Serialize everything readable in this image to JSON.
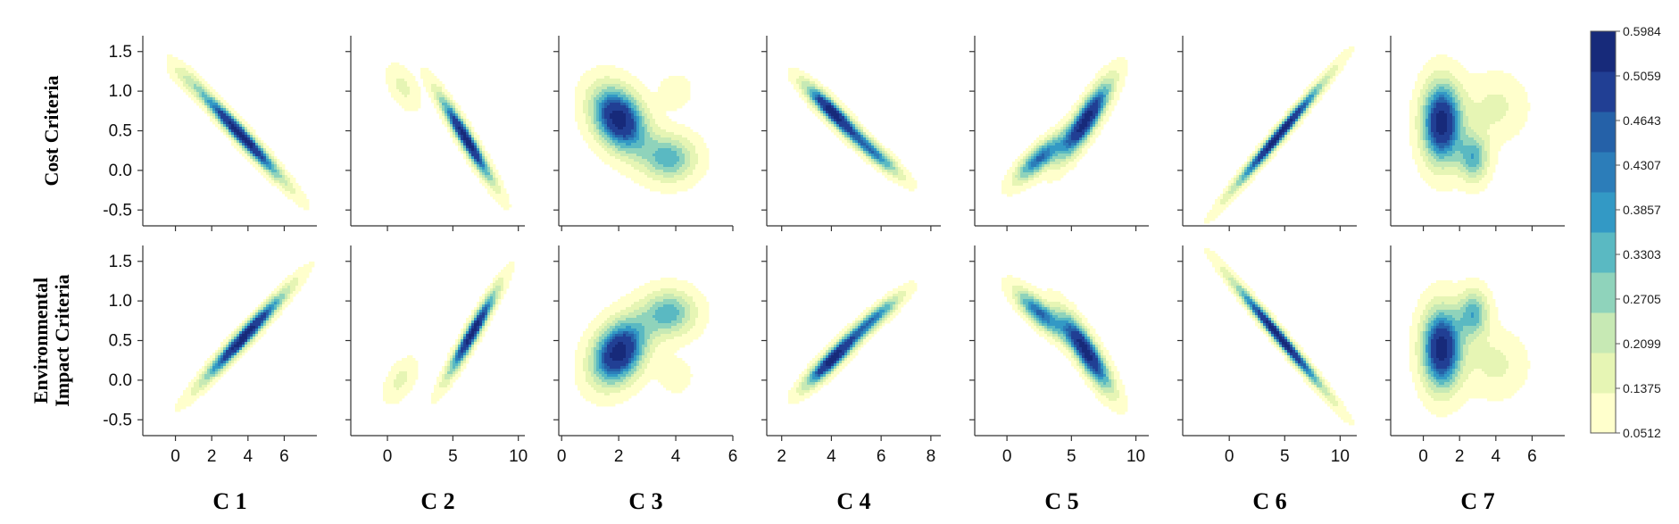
{
  "chart_data": {
    "type": "heatmap",
    "subtype": "kde-contour-grid",
    "rows": [
      {
        "key": "cost",
        "label_lines": [
          "Cost Criteria"
        ]
      },
      {
        "key": "env",
        "label_lines": [
          "Environmental",
          "Impact Criteria"
        ]
      }
    ],
    "y_ticks": [
      "1.5",
      "1.0",
      "0.5",
      "0.0",
      "-0.5"
    ],
    "y_tick_values": [
      1.5,
      1.0,
      0.5,
      0.0,
      -0.5
    ],
    "ylim": [
      -0.7,
      1.7
    ],
    "colorbar": {
      "levels": [
        "0.5984",
        "0.5059",
        "0.4643",
        "0.4307",
        "0.3857",
        "0.3303",
        "0.2705",
        "0.2099",
        "0.1375",
        "0.0512"
      ],
      "colors": [
        "#ffffcc",
        "#e6f5b4",
        "#c7e9b4",
        "#8fd3bb",
        "#5ab9c2",
        "#3399c5",
        "#2c7db9",
        "#2561a8",
        "#213f94",
        "#172a7a"
      ]
    },
    "panels": [
      {
        "title": "C 1",
        "xticks": [
          "0",
          "2",
          "4",
          "6"
        ],
        "xtick_values": [
          0,
          2,
          4,
          6
        ],
        "xlim": [
          -1.8,
          7.8
        ],
        "cost": [
          {
            "x": 3.6,
            "y": 0.45,
            "sx": 1.7,
            "sy": 0.42,
            "r": -0.97,
            "w": 1.0
          },
          {
            "x": 0.5,
            "y": 1.15,
            "sx": 0.7,
            "sy": 0.15,
            "r": -0.6,
            "w": 0.15
          }
        ],
        "env": [
          {
            "x": 3.8,
            "y": 0.55,
            "sx": 1.7,
            "sy": 0.42,
            "r": 0.97,
            "w": 1.0
          }
        ]
      },
      {
        "title": "C 2",
        "xticks": [
          "0",
          "5",
          "10"
        ],
        "xtick_values": [
          0,
          5,
          10
        ],
        "xlim": [
          -2.8,
          10.5
        ],
        "cost": [
          {
            "x": 6.0,
            "y": 0.4,
            "sx": 1.5,
            "sy": 0.4,
            "r": -0.95,
            "w": 1.0
          },
          {
            "x": 1.2,
            "y": 1.05,
            "sx": 0.9,
            "sy": 0.2,
            "r": -0.5,
            "w": 0.25
          }
        ],
        "env": [
          {
            "x": 6.5,
            "y": 0.6,
            "sx": 1.4,
            "sy": 0.4,
            "r": 0.95,
            "w": 1.0
          },
          {
            "x": 1.0,
            "y": 0.0,
            "sx": 0.9,
            "sy": 0.2,
            "r": 0.5,
            "w": 0.25
          }
        ]
      },
      {
        "title": "C 3",
        "xticks": [
          "0",
          "2",
          "4",
          "6"
        ],
        "xtick_values": [
          0,
          2,
          4,
          6
        ],
        "xlim": [
          -0.1,
          6.0
        ],
        "cost": [
          {
            "x": 2.0,
            "y": 0.65,
            "sx": 0.7,
            "sy": 0.3,
            "r": -0.3,
            "w": 1.0
          },
          {
            "x": 3.8,
            "y": 0.15,
            "sx": 0.7,
            "sy": 0.22,
            "r": 0,
            "w": 0.55
          },
          {
            "x": 4.0,
            "y": 1.0,
            "sx": 0.4,
            "sy": 0.15,
            "r": 0,
            "w": 0.2
          }
        ],
        "env": [
          {
            "x": 2.0,
            "y": 0.35,
            "sx": 0.7,
            "sy": 0.3,
            "r": 0.3,
            "w": 1.0
          },
          {
            "x": 3.8,
            "y": 0.85,
            "sx": 0.7,
            "sy": 0.22,
            "r": 0,
            "w": 0.55
          },
          {
            "x": 4.0,
            "y": 0.05,
            "sx": 0.4,
            "sy": 0.15,
            "r": 0,
            "w": 0.2
          }
        ]
      },
      {
        "title": "C 4",
        "xticks": [
          "2",
          "4",
          "6",
          "8"
        ],
        "xtick_values": [
          2,
          4,
          6,
          8
        ],
        "xlim": [
          1.4,
          8.4
        ],
        "cost": [
          {
            "x": 4.0,
            "y": 0.75,
            "sx": 0.8,
            "sy": 0.25,
            "r": -0.9,
            "w": 1.0
          },
          {
            "x": 5.8,
            "y": 0.2,
            "sx": 0.8,
            "sy": 0.22,
            "r": -0.9,
            "w": 0.65
          }
        ],
        "env": [
          {
            "x": 4.0,
            "y": 0.25,
            "sx": 0.8,
            "sy": 0.25,
            "r": 0.9,
            "w": 1.0
          },
          {
            "x": 5.8,
            "y": 0.8,
            "sx": 0.8,
            "sy": 0.22,
            "r": 0.9,
            "w": 0.65
          }
        ]
      },
      {
        "title": "C 5",
        "xticks": [
          "0",
          "5",
          "10"
        ],
        "xtick_values": [
          0,
          5,
          10
        ],
        "xlim": [
          -2.5,
          11.0
        ],
        "cost": [
          {
            "x": 2.5,
            "y": 0.15,
            "sx": 1.4,
            "sy": 0.22,
            "r": 0.8,
            "w": 0.75
          },
          {
            "x": 6.2,
            "y": 0.65,
            "sx": 1.4,
            "sy": 0.35,
            "r": 0.85,
            "w": 1.0
          }
        ],
        "env": [
          {
            "x": 2.5,
            "y": 0.85,
            "sx": 1.4,
            "sy": 0.22,
            "r": -0.8,
            "w": 0.75
          },
          {
            "x": 6.2,
            "y": 0.35,
            "sx": 1.4,
            "sy": 0.35,
            "r": -0.85,
            "w": 1.0
          }
        ]
      },
      {
        "title": "C 6",
        "xticks": [
          "0",
          "5",
          "10"
        ],
        "xtick_values": [
          0,
          5,
          10
        ],
        "xlim": [
          -4.2,
          11.5
        ],
        "cost": [
          {
            "x": 4.5,
            "y": 0.45,
            "sx": 3.0,
            "sy": 0.5,
            "r": 0.985,
            "w": 1.0
          }
        ],
        "env": [
          {
            "x": 4.5,
            "y": 0.55,
            "sx": 3.0,
            "sy": 0.5,
            "r": -0.985,
            "w": 1.0
          }
        ]
      },
      {
        "title": "C 7",
        "xticks": [
          "0",
          "2",
          "4",
          "6"
        ],
        "xtick_values": [
          0,
          2,
          4,
          6
        ],
        "xlim": [
          -1.8,
          7.8
        ],
        "cost": [
          {
            "x": 1.0,
            "y": 0.6,
            "sx": 0.8,
            "sy": 0.38,
            "r": 0,
            "w": 1.0
          },
          {
            "x": 2.8,
            "y": 0.15,
            "sx": 0.6,
            "sy": 0.22,
            "r": 0,
            "w": 0.55
          },
          {
            "x": 4.0,
            "y": 0.8,
            "sx": 1.2,
            "sy": 0.3,
            "r": 0,
            "w": 0.25
          }
        ],
        "env": [
          {
            "x": 1.0,
            "y": 0.4,
            "sx": 0.8,
            "sy": 0.38,
            "r": 0,
            "w": 1.0
          },
          {
            "x": 2.8,
            "y": 0.85,
            "sx": 0.6,
            "sy": 0.22,
            "r": 0,
            "w": 0.55
          },
          {
            "x": 4.0,
            "y": 0.2,
            "sx": 1.2,
            "sy": 0.3,
            "r": 0,
            "w": 0.25
          }
        ]
      }
    ]
  }
}
